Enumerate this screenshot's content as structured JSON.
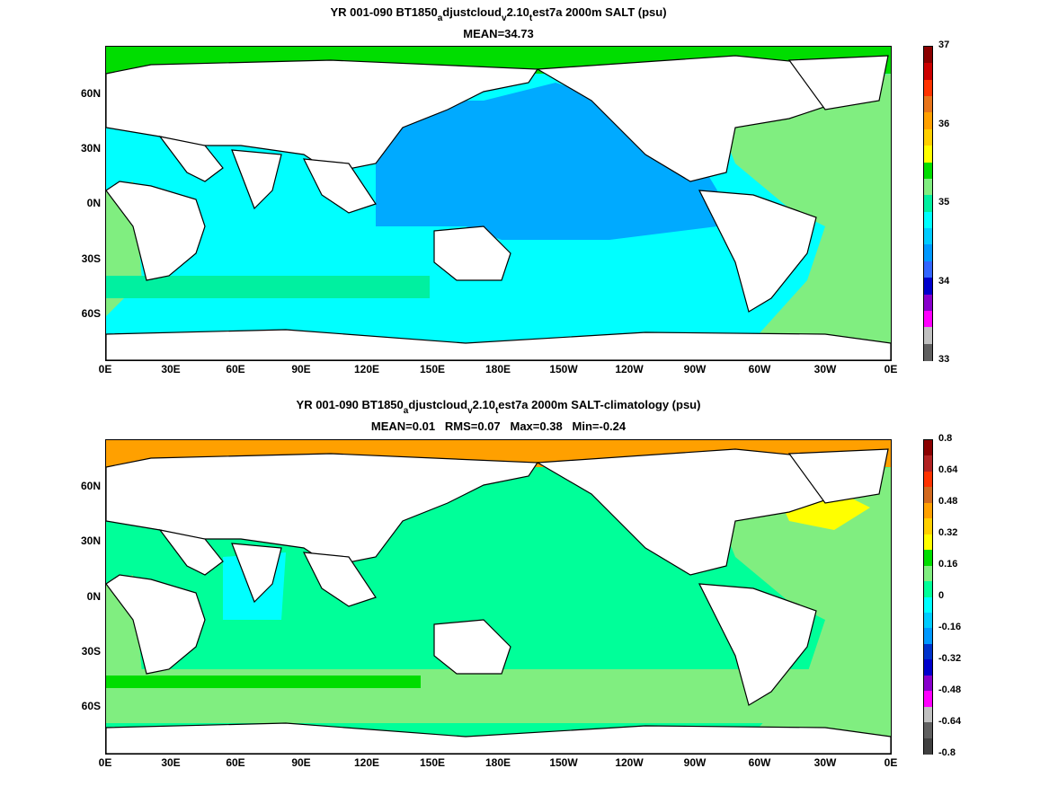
{
  "panels": [
    {
      "title_parts": [
        "YR 001-090 BT1850",
        "a",
        "djustcloud",
        "v",
        "2.10",
        "t",
        "est7a 2000m SALT (psu)"
      ],
      "subtitle": "MEAN=34.73",
      "lat_labels": [
        "60N",
        "30N",
        "0N",
        "30S",
        "60S"
      ],
      "lon_labels": [
        "0E",
        "30E",
        "60E",
        "90E",
        "120E",
        "150E",
        "180E",
        "150W",
        "120W",
        "90W",
        "60W",
        "30W",
        "0E"
      ],
      "colorbar_labels": [
        "37",
        "36",
        "35",
        "34",
        "33"
      ],
      "colorbar_colors": [
        "#8b0000",
        "#cc0000",
        "#ff3300",
        "#e8741a",
        "#ffa000",
        "#ffd000",
        "#ffff00",
        "#00dd00",
        "#80ee80",
        "#00f0a0",
        "#00ffff",
        "#00ccff",
        "#0099ff",
        "#3366ff",
        "#0000cc",
        "#8800cc",
        "#ff00ff",
        "#c0c0c0",
        "#606060"
      ],
      "ocean_colors": {
        "base": "#00ffff",
        "pacific": "#00aaff",
        "atlantic": "#80ee80",
        "arctic": "#00dd00",
        "southern": "#00f0a0"
      }
    },
    {
      "title_parts": [
        "YR 001-090 BT1850",
        "a",
        "djustcloud",
        "v",
        "2.10",
        "t",
        "est7a 2000m SALT-climatology (psu)"
      ],
      "subtitle": "MEAN=0.01   RMS=0.07   Max=0.38   Min=-0.24",
      "lat_labels": [
        "60N",
        "30N",
        "0N",
        "30S",
        "60S"
      ],
      "lon_labels": [
        "0E",
        "30E",
        "60E",
        "90E",
        "120E",
        "150E",
        "180E",
        "150W",
        "120W",
        "90W",
        "60W",
        "30W",
        "0E"
      ],
      "colorbar_labels": [
        "0.8",
        "0.64",
        "0.48",
        "0.32",
        "0.16",
        "0",
        "-0.16",
        "-0.32",
        "-0.48",
        "-0.64",
        "-0.8"
      ],
      "colorbar_colors": [
        "#8b0000",
        "#b22222",
        "#ff3300",
        "#d2691e",
        "#ffa000",
        "#ffd000",
        "#ffff00",
        "#00dd00",
        "#80ee80",
        "#00ff99",
        "#00ffff",
        "#00ccff",
        "#0099ff",
        "#0033cc",
        "#0000cc",
        "#8800cc",
        "#ff00ff",
        "#c0c0c0",
        "#606060",
        "#404040"
      ],
      "ocean_colors": {
        "base": "#00ff99",
        "pacific": "#00ff99",
        "atlantic": "#80ee80",
        "arctic": "#ffa000",
        "southern": "#80ee80"
      }
    }
  ]
}
